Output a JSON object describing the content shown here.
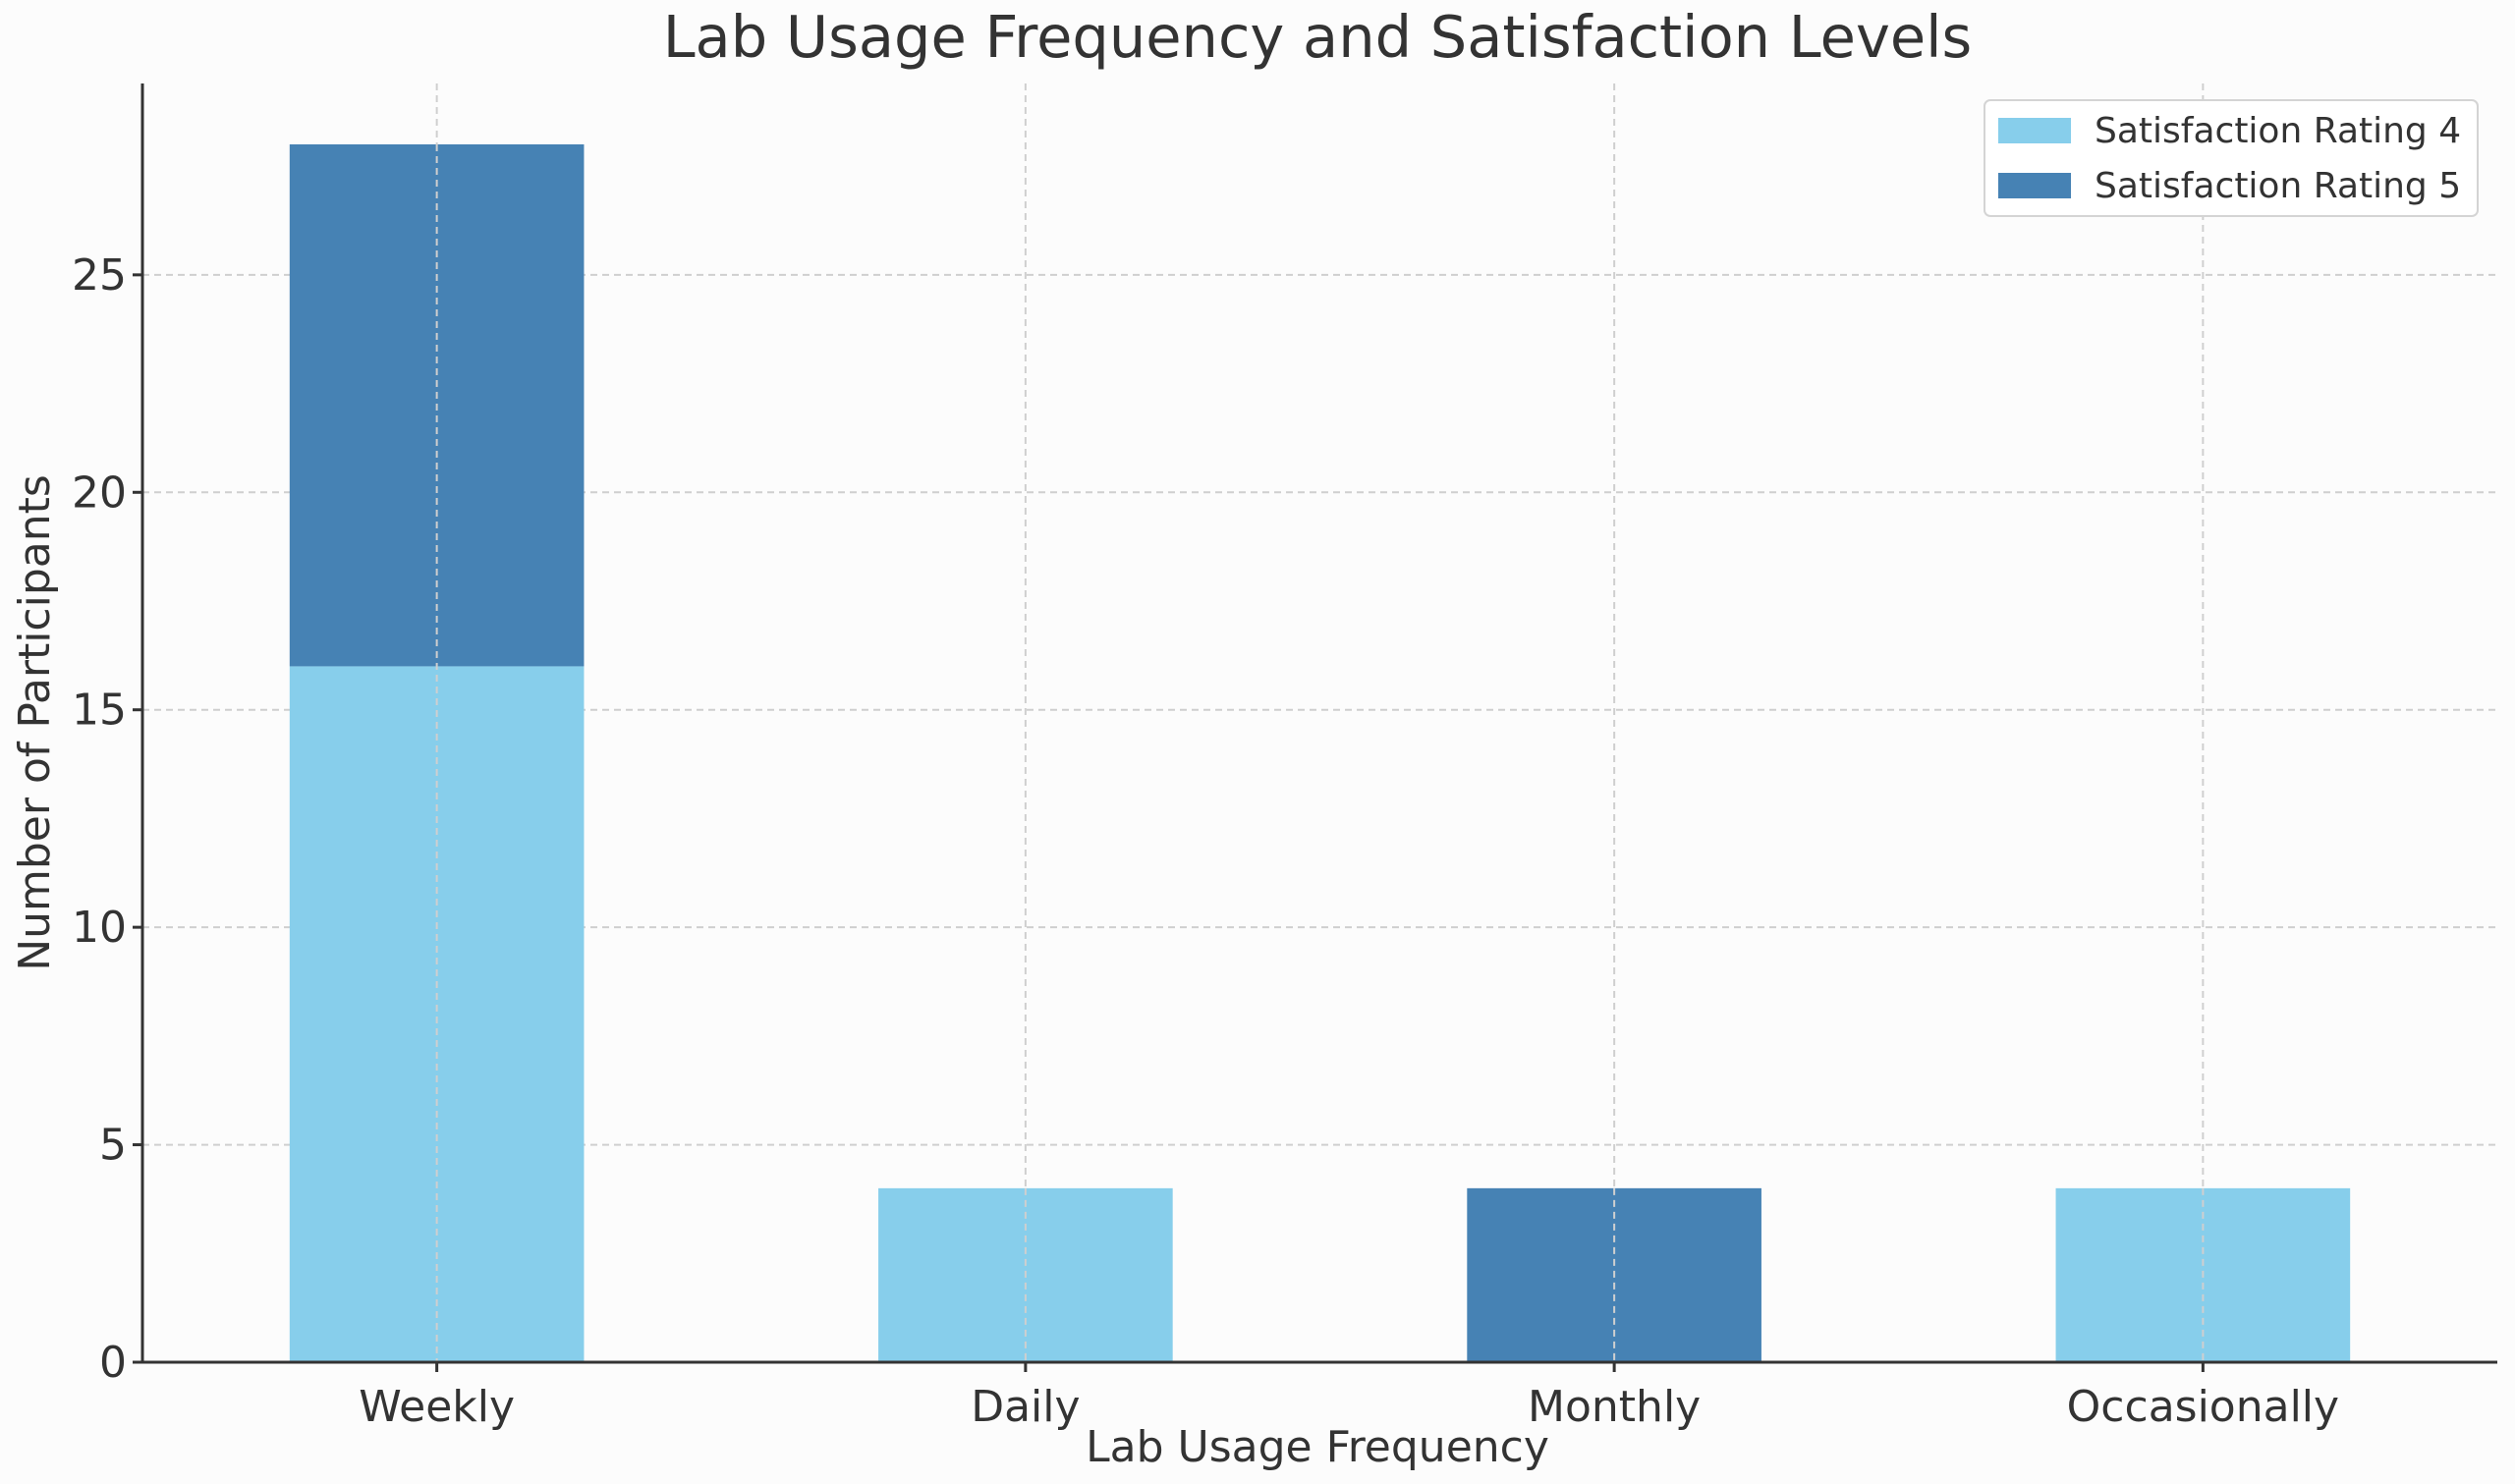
{
  "chart_data": {
    "type": "bar",
    "stacked": true,
    "title": "Lab Usage Frequency and Satisfaction Levels",
    "xlabel": "Lab Usage Frequency",
    "ylabel": "Number of Participants",
    "categories": [
      "Weekly",
      "Daily",
      "Monthly",
      "Occasionally"
    ],
    "series": [
      {
        "name": "Satisfaction Rating 4",
        "color": "#87ceeb",
        "values": [
          16,
          4,
          0,
          4
        ]
      },
      {
        "name": "Satisfaction Rating 5",
        "color": "#4682b4",
        "values": [
          12,
          0,
          4,
          0
        ]
      }
    ],
    "ylim": [
      0,
      29.4
    ],
    "yticks": [
      0,
      5,
      10,
      15,
      20,
      25
    ],
    "grid": true,
    "legend_position": "top-right"
  }
}
